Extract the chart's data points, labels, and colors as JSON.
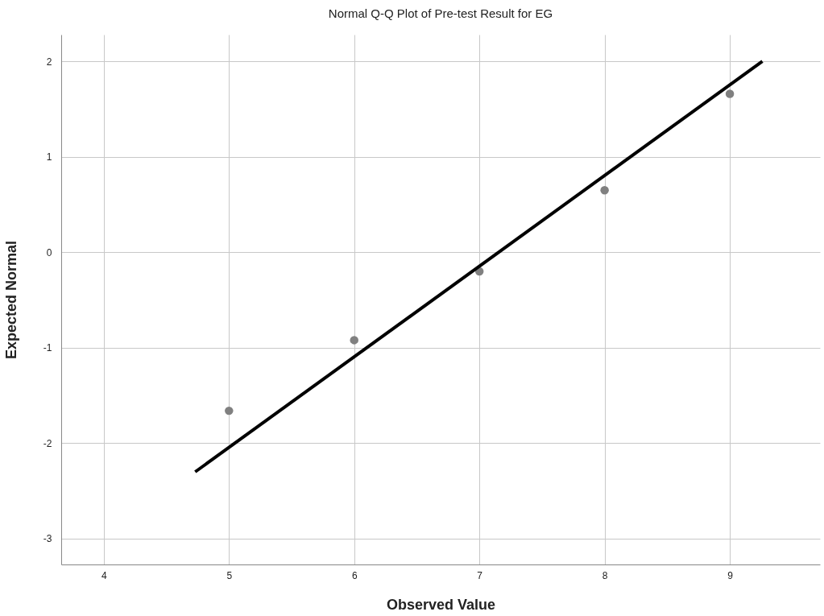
{
  "chart_data": {
    "type": "scatter",
    "title": "Normal Q-Q Plot of Pre-test Result for EG",
    "xlabel": "Observed Value",
    "ylabel": "Expected Normal",
    "x": [
      5,
      6,
      7,
      8,
      9
    ],
    "series": [
      {
        "color": "#808080",
        "marker": "circle",
        "values": [
          -1.66,
          -0.92,
          -0.2,
          0.65,
          1.66
        ]
      },
      {
        "type": "line",
        "color": "#000000",
        "x": [
          4.73,
          9.26
        ],
        "values": [
          -2.3,
          2.0
        ]
      }
    ],
    "xlim": [
      3.66,
      9.72
    ],
    "xticks": [
      4,
      5,
      6,
      7,
      8,
      9
    ],
    "ylim": [
      -3.27,
      2.28
    ],
    "yticks": [
      -3,
      -2,
      -1,
      0,
      1,
      2
    ],
    "grid": true,
    "line_style": "solid"
  }
}
